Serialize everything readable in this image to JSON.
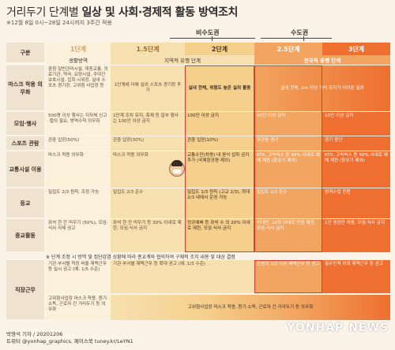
{
  "title_prefix": "거리두기 단계별 ",
  "title_main": "일상 및 사회·경제적 활동 방역조치",
  "subtitle": "※12월 8일 0시~28일 24시까지 3주간 적용",
  "regions": {
    "noncapital": "비수도권",
    "capital": "수도권"
  },
  "header": {
    "label": "구분",
    "levels": [
      "1단계",
      "1.5단계",
      "2단계",
      "2.5단계",
      "3단계"
    ],
    "subs": [
      "생활방역",
      "지역적 유행 단계",
      "전국적 유행 단계"
    ]
  },
  "rows": [
    {
      "label": "마스크 착용 의무화",
      "cells": [
        "중점·일반관리시설, 대중교통, 의료기관, 약국, 요양시설, 주야간보호시설, 집회·시위장, 실내 스포츠 경기장, 고위험 사업장 등",
        "1단계에 더해 실외 스포츠 경기장 추가",
        "실내 전체, 위험도 높은 실외 활동",
        "실내 전체, 2m 이상 거리 유지가 어려운 실외"
      ]
    },
    {
      "label": "모임·행사",
      "cells": [
        "500명 이상 행사는 지자체 신고·협의 필요, 방역수칙 의무화",
        "1단계 조치 유지, 축제 등 일부 행사는 100인 이상 금지",
        "100인 이상 금지",
        "50인 이상 금지",
        "10인 이상 금지"
      ]
    },
    {
      "label": "스포츠 관람",
      "cells": [
        "관중 입장(50%)",
        "관중 입장(30%)",
        "관중 입장(10%)",
        "무관중 경기",
        "경기 중단"
      ]
    },
    {
      "label": "교통시설 이용",
      "cells": [
        "마스크 착용 의무화",
        "마스크 착용 의무화",
        "교통수단(차량) 내 음식 섭취 금지 추가 (국제항공편 제외)",
        "KTX, 고속버스 등 50% 이내로 예매 제한 (항공기 제외)",
        "KTX, 고속버스 등 50% 이내로 예매 제한 (항공기 제외)"
      ]
    },
    {
      "label": "등교",
      "cells": [
        "밀집도 2/3 원칙, 조정 가능",
        "밀집도 2/3 준수",
        "밀집도 1/3 원칙 (고교 2/3), 최대 2/3 내에서 운영 가능",
        "밀집도 1/3 준수",
        "원격수업 전환"
      ]
    },
    {
      "label": "종교활동",
      "cells": [
        "좌석 한 칸 띄우기 (50%), 모임·식사 자제 권고",
        "좌석 한 칸 띄우기 등 30% 이내로 제한, 모임·식사 금지",
        "정규예배 등 좌석 수 의 20% 이내로 제한, 모임·식사 금지",
        "비대면, 20명 이내로 인원 제한, 모임·식사 금지",
        "1인 영상만 허용, 모임·식사 금지"
      ]
    },
    {
      "label": "직장근무",
      "cells": [
        "기관·부서별 적정 비율 재택근무 등 실시 권고 (예: 1/5 수준)",
        "기관·부서별 재택근무 등 확대 권고 (예: 1/3 수준)",
        "인원의 1/3 이상 재택근무 등 권고",
        "필수인력 이외 재택근무 등 권고",
        "고위험사업장 마스크 착용, 환기·소독, 근로자 간 거리두기 등 의무화"
      ]
    }
  ],
  "note": "※ 단계 조정 시 방역 및 집단감염 상황에 따라 종교계와 협의하여 구체적 조치 내용 및 대상 결정",
  "footer_line1": "박영석 기자 / 20201206",
  "footer_line2": "트위터 @yonhap_graphics, 페이스북 tuney.kr/LeYN1",
  "watermark": "YONHAP NEWS"
}
